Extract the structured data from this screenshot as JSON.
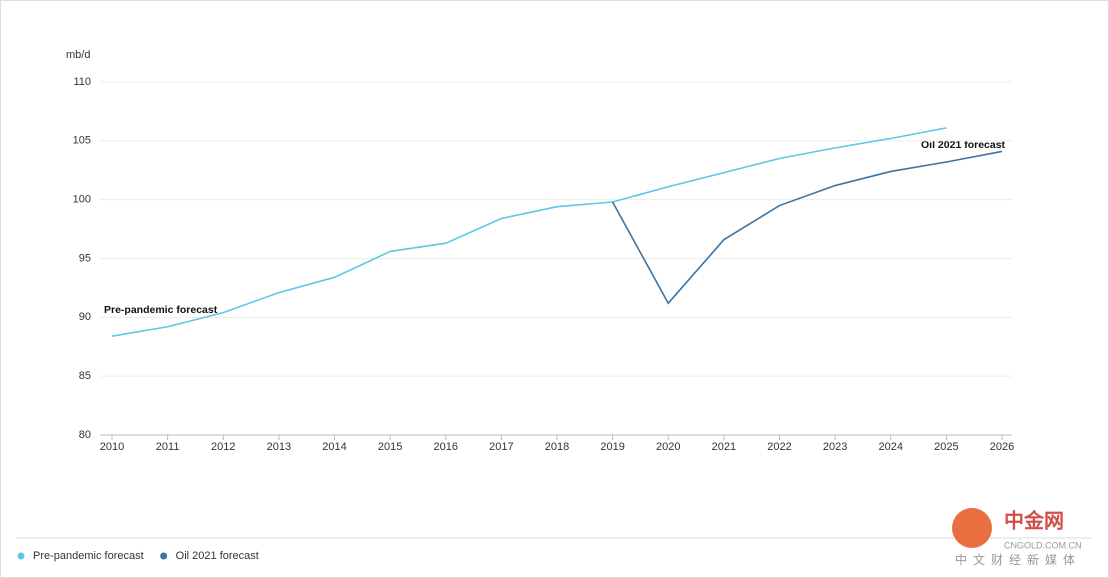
{
  "chart_data": {
    "type": "line",
    "y_unit": "mb/d",
    "x": [
      2010,
      2011,
      2012,
      2013,
      2014,
      2015,
      2016,
      2017,
      2018,
      2019,
      2020,
      2021,
      2022,
      2023,
      2024,
      2025,
      2026
    ],
    "series": [
      {
        "name": "Pre-pandemic forecast",
        "color": "#5bc8e6",
        "values": [
          88.4,
          89.2,
          90.4,
          92.1,
          93.4,
          95.6,
          96.3,
          98.4,
          99.4,
          99.8,
          101.1,
          102.3,
          103.5,
          104.4,
          105.2,
          106.1,
          null
        ]
      },
      {
        "name": "Oil 2021 forecast",
        "color": "#3f73a0",
        "values": [
          null,
          null,
          null,
          null,
          null,
          null,
          null,
          null,
          null,
          99.8,
          91.2,
          96.6,
          99.5,
          101.2,
          102.4,
          103.2,
          104.1
        ]
      }
    ],
    "annotations": [
      "Pre-pandemic forecast",
      "Oil 2021 forecast"
    ],
    "xlim": [
      2010,
      2026
    ],
    "xticks": [
      2010,
      2011,
      2012,
      2013,
      2014,
      2015,
      2016,
      2017,
      2018,
      2019,
      2020,
      2021,
      2022,
      2023,
      2024,
      2025,
      2026
    ],
    "ylim": [
      80,
      110
    ],
    "yticks": [
      80,
      85,
      90,
      95,
      100,
      105,
      110
    ],
    "grid": true,
    "legend": "bottom-left"
  },
  "watermark": {
    "logo": "中金网",
    "domain": "CNGOLD.COM.CN",
    "slogan": "中文财经新媒体"
  }
}
